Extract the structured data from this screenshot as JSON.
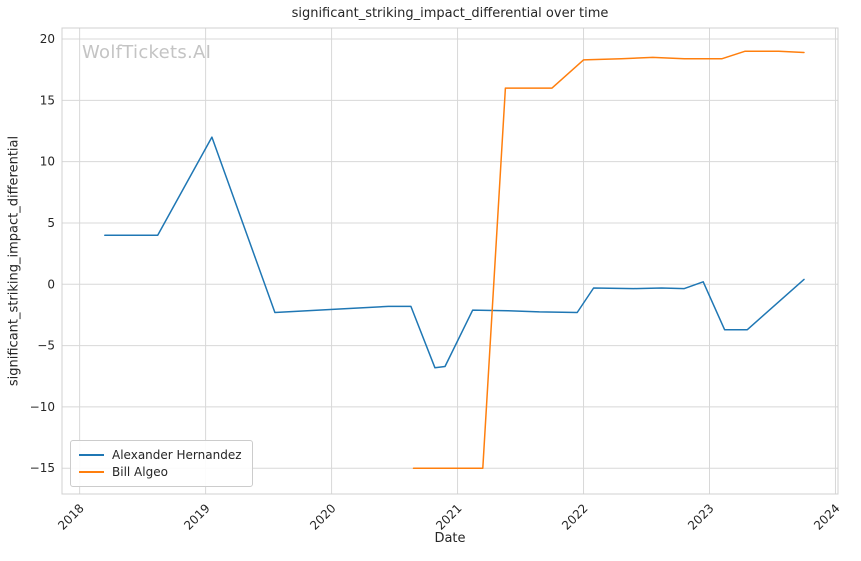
{
  "watermark": "WolfTickets.AI",
  "chart_data": {
    "type": "line",
    "title": "significant_striking_impact_differential over time",
    "xlabel": "Date",
    "ylabel": "significant_striking_impact_differential",
    "grid": true,
    "legend_position": "lower left",
    "xlim": [
      2017.86,
      2024.02
    ],
    "ylim": [
      -17.1,
      20.9
    ],
    "x_ticks": [
      2018,
      2019,
      2020,
      2021,
      2022,
      2023,
      2024
    ],
    "x_tick_labels": [
      "2018",
      "2019",
      "2020",
      "2021",
      "2022",
      "2023",
      "2024"
    ],
    "y_ticks": [
      -15,
      -10,
      -5,
      0,
      5,
      10,
      15,
      20
    ],
    "y_tick_labels": [
      "−15",
      "−10",
      "−5",
      "0",
      "5",
      "10",
      "15",
      "20"
    ],
    "colors": {
      "grid": "#d8d8d8",
      "spine": "#d0d0d0",
      "text": "#262626"
    },
    "series": [
      {
        "name": "Alexander Hernandez",
        "color": "#1f77b4",
        "points": [
          [
            2018.2,
            4.0
          ],
          [
            2018.62,
            4.0
          ],
          [
            2019.05,
            12.0
          ],
          [
            2019.55,
            -2.3
          ],
          [
            2020.1,
            -2.0
          ],
          [
            2020.45,
            -1.8
          ],
          [
            2020.63,
            -1.8
          ],
          [
            2020.82,
            -6.8
          ],
          [
            2020.9,
            -6.7
          ],
          [
            2021.12,
            -2.1
          ],
          [
            2021.4,
            -2.15
          ],
          [
            2021.65,
            -2.25
          ],
          [
            2021.95,
            -2.3
          ],
          [
            2022.08,
            -0.3
          ],
          [
            2022.4,
            -0.35
          ],
          [
            2022.62,
            -0.3
          ],
          [
            2022.8,
            -0.35
          ],
          [
            2022.95,
            0.2
          ],
          [
            2023.12,
            -3.7
          ],
          [
            2023.3,
            -3.7
          ],
          [
            2023.75,
            0.4
          ]
        ]
      },
      {
        "name": "Bill Algeo",
        "color": "#ff7f0e",
        "points": [
          [
            2020.65,
            -15.0
          ],
          [
            2021.0,
            -15.0
          ],
          [
            2021.2,
            -15.0
          ],
          [
            2021.38,
            16.0
          ],
          [
            2021.55,
            16.0
          ],
          [
            2021.75,
            16.0
          ],
          [
            2022.0,
            18.3
          ],
          [
            2022.3,
            18.4
          ],
          [
            2022.55,
            18.5
          ],
          [
            2022.8,
            18.4
          ],
          [
            2023.1,
            18.4
          ],
          [
            2023.28,
            19.0
          ],
          [
            2023.55,
            19.0
          ],
          [
            2023.75,
            18.9
          ]
        ]
      }
    ]
  }
}
